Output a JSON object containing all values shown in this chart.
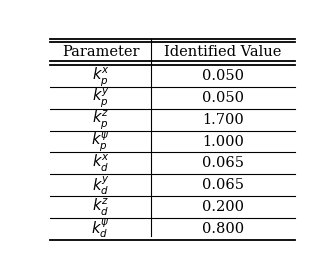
{
  "col_headers": [
    "Parameter",
    "Identified Value"
  ],
  "rows": [
    [
      "$k_p^x$",
      "0.050"
    ],
    [
      "$k_p^y$",
      "0.050"
    ],
    [
      "$k_p^z$",
      "1.700"
    ],
    [
      "$k_p^{\\psi}$",
      "1.000"
    ],
    [
      "$k_d^x$",
      "0.065"
    ],
    [
      "$k_d^y$",
      "0.065"
    ],
    [
      "$k_d^z$",
      "0.200"
    ],
    [
      "$k_d^{\\psi}$",
      "0.800"
    ]
  ],
  "figsize": [
    3.36,
    2.7
  ],
  "dpi": 100,
  "bg_color": "#ffffff",
  "header_fontsize": 10.5,
  "cell_fontsize": 10.5,
  "col_split": 0.42
}
